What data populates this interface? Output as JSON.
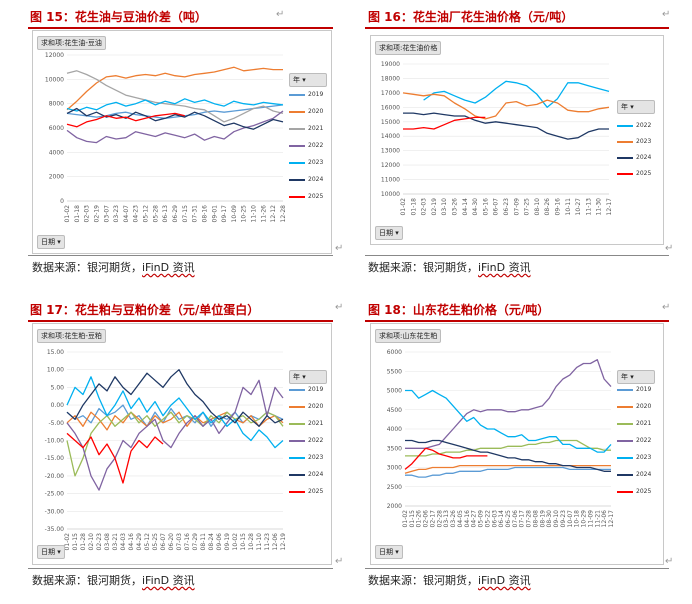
{
  "figures": [
    {
      "title": "图 15：花生油与豆油价差（吨）",
      "source_prefix": "数据来源：银河期货，",
      "source_ifind": "iFinD 资讯",
      "header_pill": "求和项:花生油-豆油",
      "legend_header": "年",
      "x_field": "日期",
      "return_mark": "↵"
    },
    {
      "title": "图 16：花生油厂花生油价格（元/吨）",
      "source_prefix": "数据来源：银河期货，",
      "source_ifind": "iFinD 资讯",
      "header_pill": "求和项:花生油价格",
      "legend_header": "年",
      "x_field": "日期",
      "return_mark": "↵"
    },
    {
      "title": "图 17：花生粕与豆粕价差（元/单位蛋白）",
      "source_prefix": "数据来源：银河期货，",
      "source_ifind": "iFinD 资讯",
      "header_pill": "求和项:花生粕-豆粕",
      "legend_header": "年",
      "x_field": "日期",
      "return_mark": "↵"
    },
    {
      "title": "图 18：山东花生粕价格（元/吨）",
      "source_prefix": "数据来源：银河期货，",
      "source_ifind": "iFinD 资讯",
      "header_pill": "求和项:山东花生粕",
      "legend_header": "年",
      "x_field": "日期",
      "return_mark": "↵"
    }
  ],
  "chart_data": [
    {
      "type": "line",
      "title": "图 15：花生油与豆油价差（吨）",
      "ylim": [
        0,
        12000
      ],
      "yticks": [
        0,
        2000,
        4000,
        6000,
        8000,
        10000,
        12000
      ],
      "x_ticks": [
        "01-02",
        "01-18",
        "02-03",
        "02-19",
        "03-07",
        "03-23",
        "04-07",
        "04-23",
        "05-12",
        "05-28",
        "06-13",
        "06-29",
        "07-15",
        "07-31",
        "08-16",
        "09-01",
        "09-17",
        "10-09",
        "10-25",
        "11-10",
        "11-26",
        "12-12",
        "12-28"
      ],
      "legend_position": "right",
      "series": [
        {
          "name": "2019",
          "color": "#5b9bd5",
          "values": [
            7200,
            7100,
            7000,
            6900,
            7000,
            7200,
            7300,
            7100,
            7000,
            6900,
            6800,
            6900,
            7000,
            7100,
            7300,
            7400,
            7300,
            7400,
            7500,
            7600,
            7700,
            7800,
            7900
          ]
        },
        {
          "name": "2020",
          "color": "#ed7d31",
          "values": [
            7500,
            8200,
            9000,
            9700,
            10200,
            10300,
            10100,
            10300,
            10400,
            10300,
            10500,
            10300,
            10200,
            10400,
            10500,
            10600,
            10800,
            11000,
            10700,
            10800,
            10900,
            10800,
            10800
          ]
        },
        {
          "name": "2021",
          "color": "#a5a5a5",
          "values": [
            10500,
            10700,
            10400,
            10000,
            9500,
            9100,
            8700,
            8500,
            8300,
            8100,
            8000,
            7900,
            7800,
            7600,
            7500,
            7000,
            6500,
            6800,
            7200,
            7600,
            7800,
            7400,
            7200
          ]
        },
        {
          "name": "2022",
          "color": "#8064a2",
          "values": [
            5800,
            5200,
            4900,
            4800,
            5300,
            5100,
            5200,
            5700,
            5500,
            5300,
            5600,
            5400,
            5200,
            5500,
            5000,
            5300,
            5100,
            5700,
            6000,
            6200,
            6500,
            6800,
            7400
          ]
        },
        {
          "name": "2023",
          "color": "#00b0f0",
          "values": [
            7600,
            7400,
            7700,
            7500,
            7900,
            8100,
            7800,
            8000,
            8300,
            7900,
            8200,
            8000,
            8400,
            8100,
            8300,
            8000,
            7800,
            8200,
            8000,
            7900,
            8100,
            8000,
            7900
          ]
        },
        {
          "name": "2024",
          "color": "#1f3864",
          "values": [
            7200,
            7600,
            7000,
            7300,
            6900,
            7100,
            6800,
            7300,
            7000,
            6600,
            6800,
            7100,
            6900,
            7300,
            7000,
            6600,
            6200,
            6400,
            6100,
            5900,
            6300,
            6700,
            6500
          ]
        },
        {
          "name": "2025",
          "color": "#ff0000",
          "values": [
            6300,
            6100,
            6500,
            6700,
            7000,
            6800,
            6900,
            6600,
            6800,
            7000,
            7100,
            7200,
            7000,
            null,
            null,
            null,
            null,
            null,
            null,
            null,
            null,
            null,
            null
          ]
        }
      ]
    },
    {
      "type": "line",
      "title": "图 16：花生油厂花生油价格（元/吨）",
      "ylim": [
        10000,
        19000
      ],
      "yticks": [
        10000,
        11000,
        12000,
        13000,
        14000,
        15000,
        16000,
        17000,
        18000,
        19000
      ],
      "x_ticks": [
        "01-02",
        "01-18",
        "02-03",
        "02-19",
        "03-10",
        "03-26",
        "04-14",
        "04-30",
        "05-16",
        "06-07",
        "06-23",
        "07-09",
        "07-25",
        "08-10",
        "08-26",
        "09-16",
        "10-11",
        "10-27",
        "11-13",
        "11-30",
        "12-17"
      ],
      "legend_position": "right",
      "series": [
        {
          "name": "2022",
          "color": "#00b0f0",
          "values": [
            null,
            null,
            16500,
            17000,
            17100,
            16800,
            16500,
            16300,
            16700,
            17300,
            17800,
            17700,
            17500,
            16900,
            16000,
            16600,
            17700,
            17700,
            17500,
            17300,
            17100
          ]
        },
        {
          "name": "2023",
          "color": "#ed7d31",
          "values": [
            17000,
            16900,
            16800,
            16900,
            16800,
            16300,
            15900,
            15400,
            15200,
            15400,
            16300,
            16400,
            16100,
            16200,
            16500,
            16300,
            15800,
            15700,
            15700,
            15900,
            16000
          ]
        },
        {
          "name": "2024",
          "color": "#1f3864",
          "values": [
            15600,
            15600,
            15500,
            15600,
            15500,
            15400,
            15400,
            15100,
            14900,
            15000,
            14900,
            14800,
            14700,
            14600,
            14200,
            14000,
            13800,
            13900,
            14300,
            14500,
            14500
          ]
        },
        {
          "name": "2025",
          "color": "#ff0000",
          "values": [
            14500,
            14500,
            14600,
            14500,
            14800,
            15100,
            15200,
            15300,
            15300,
            null,
            null,
            null,
            null,
            null,
            null,
            null,
            null,
            null,
            null,
            null,
            null
          ]
        }
      ]
    },
    {
      "type": "line",
      "title": "图 17：花生粕与豆粕价差（元/单位蛋白）",
      "ylim": [
        -35,
        15
      ],
      "yticks": [
        -35,
        -30,
        -25,
        -20,
        -15,
        -10,
        -5,
        0,
        5,
        10,
        15
      ],
      "x_ticks": [
        "01-02",
        "01-15",
        "01-28",
        "02-10",
        "02-23",
        "03-08",
        "03-21",
        "04-03",
        "04-16",
        "04-29",
        "05-12",
        "05-25",
        "06-07",
        "06-20",
        "07-03",
        "07-16",
        "07-29",
        "08-11",
        "08-24",
        "09-06",
        "09-19",
        "10-02",
        "10-15",
        "10-28",
        "11-10",
        "11-23",
        "12-06",
        "12-19"
      ],
      "legend_position": "right",
      "series": [
        {
          "name": "2019",
          "color": "#5b9bd5",
          "values": [
            -2,
            -4,
            -3,
            -5,
            -1,
            -3,
            -2,
            0,
            -4,
            -3,
            -6,
            -2,
            -5,
            -1,
            -4,
            -3,
            -5,
            -2,
            -6,
            -3,
            -4,
            -2,
            -5,
            -3,
            -4,
            -2,
            -3,
            -4
          ]
        },
        {
          "name": "2020",
          "color": "#ed7d31",
          "values": [
            -5,
            -3,
            -6,
            -2,
            -4,
            -7,
            -3,
            -5,
            -2,
            -4,
            -6,
            -3,
            -5,
            -4,
            -2,
            -6,
            -3,
            -5,
            -4,
            -3,
            -2,
            -4,
            -5,
            -3,
            -6,
            -4,
            -3,
            -5
          ]
        },
        {
          "name": "2021",
          "color": "#9bbb59",
          "values": [
            -10,
            -20,
            -15,
            -8,
            -5,
            -3,
            -6,
            -4,
            -2,
            -5,
            -3,
            -6,
            -4,
            -2,
            -5,
            -3,
            -4,
            -6,
            -3,
            -5,
            -2,
            -4,
            -3,
            -5,
            -4,
            -2,
            -3,
            -6
          ]
        },
        {
          "name": "2022",
          "color": "#8064a2",
          "values": [
            -5,
            -8,
            -12,
            -20,
            -24,
            -18,
            -15,
            -10,
            -12,
            -8,
            -6,
            -4,
            -10,
            -12,
            -8,
            -5,
            -3,
            -6,
            -4,
            -8,
            -5,
            -2,
            5,
            3,
            7,
            -3,
            5,
            2
          ]
        },
        {
          "name": "2023",
          "color": "#00b0f0",
          "values": [
            0,
            5,
            3,
            8,
            2,
            -3,
            0,
            4,
            -1,
            2,
            -2,
            1,
            -3,
            0,
            2,
            -1,
            -4,
            -2,
            -5,
            -3,
            -6,
            -4,
            -8,
            -10,
            -7,
            -9,
            -12,
            -10
          ]
        },
        {
          "name": "2024",
          "color": "#1f3864",
          "values": [
            -2,
            -4,
            0,
            3,
            6,
            4,
            8,
            5,
            3,
            6,
            9,
            7,
            5,
            8,
            10,
            6,
            3,
            1,
            -2,
            -4,
            -3,
            -5,
            -2,
            -4,
            -6,
            -3,
            -5,
            -4
          ]
        },
        {
          "name": "2025",
          "color": "#ff0000",
          "values": [
            -8,
            -10,
            -12,
            -9,
            -14,
            -11,
            -15,
            -22,
            -13,
            -10,
            -12,
            -9,
            -11,
            null,
            null,
            null,
            null,
            null,
            null,
            null,
            null,
            null,
            null,
            null,
            null,
            null,
            null,
            null
          ]
        }
      ]
    },
    {
      "type": "line",
      "title": "图 18：山东花生粕价格（元/吨）",
      "ylim": [
        2000,
        6000
      ],
      "yticks": [
        2000,
        2500,
        3000,
        3500,
        4000,
        4500,
        5000,
        5500,
        6000
      ],
      "x_ticks": [
        "01-02",
        "01-15",
        "01-26",
        "02-06",
        "02-17",
        "02-28",
        "03-13",
        "03-26",
        "04-05",
        "04-16",
        "04-27",
        "05-09",
        "05-22",
        "06-03",
        "06-14",
        "06-25",
        "07-06",
        "07-17",
        "07-28",
        "08-08",
        "08-19",
        "08-30",
        "09-10",
        "09-23",
        "10-07",
        "10-18",
        "10-29",
        "11-09",
        "11-21",
        "12-06",
        "12-17"
      ],
      "legend_position": "right",
      "series": [
        {
          "name": "2019",
          "color": "#5b9bd5",
          "values": [
            2800,
            2800,
            2750,
            2750,
            2800,
            2800,
            2850,
            2850,
            2900,
            2900,
            2900,
            2900,
            2950,
            2950,
            2950,
            2950,
            3000,
            3000,
            3000,
            3000,
            3000,
            3000,
            3000,
            3000,
            2950,
            2950,
            2950,
            2950,
            2950,
            2950,
            2950
          ]
        },
        {
          "name": "2020",
          "color": "#ed7d31",
          "values": [
            2850,
            2900,
            2950,
            2950,
            3000,
            3000,
            3000,
            3000,
            3050,
            3050,
            3050,
            3050,
            3050,
            3050,
            3050,
            3050,
            3050,
            3050,
            3050,
            3050,
            3050,
            3050,
            3050,
            3050,
            3050,
            3050,
            3050,
            3050,
            3050,
            3050,
            3050
          ]
        },
        {
          "name": "2021",
          "color": "#9bbb59",
          "values": [
            3300,
            3300,
            3300,
            3300,
            3350,
            3350,
            3400,
            3400,
            3400,
            3450,
            3450,
            3500,
            3500,
            3500,
            3500,
            3550,
            3550,
            3550,
            3600,
            3600,
            3650,
            3650,
            3700,
            3700,
            3700,
            3700,
            3600,
            3500,
            3500,
            3450,
            3450
          ]
        },
        {
          "name": "2022",
          "color": "#8064a2",
          "values": [
            3500,
            3500,
            3500,
            3500,
            3550,
            3600,
            3800,
            4000,
            4200,
            4400,
            4500,
            4450,
            4500,
            4500,
            4500,
            4450,
            4450,
            4500,
            4500,
            4550,
            4600,
            4800,
            5100,
            5300,
            5400,
            5600,
            5700,
            5700,
            5800,
            5300,
            5100
          ]
        },
        {
          "name": "2023",
          "color": "#00b0f0",
          "values": [
            5000,
            5000,
            4800,
            4900,
            5000,
            4900,
            4800,
            4600,
            4400,
            4200,
            4300,
            4100,
            4000,
            4000,
            3900,
            3800,
            3800,
            3850,
            3700,
            3700,
            3750,
            3800,
            3800,
            3600,
            3600,
            3500,
            3500,
            3500,
            3400,
            3400,
            3600
          ]
        },
        {
          "name": "2024",
          "color": "#1f3864",
          "values": [
            3700,
            3700,
            3650,
            3650,
            3700,
            3700,
            3650,
            3600,
            3550,
            3500,
            3450,
            3400,
            3400,
            3350,
            3300,
            3250,
            3250,
            3200,
            3200,
            3150,
            3150,
            3100,
            3100,
            3050,
            3050,
            3000,
            3000,
            3000,
            2950,
            2900,
            2900
          ]
        },
        {
          "name": "2025",
          "color": "#ff0000",
          "values": [
            2950,
            3100,
            3300,
            3500,
            3450,
            3350,
            3300,
            3250,
            3250,
            3300,
            3300,
            3300,
            3300,
            null,
            null,
            null,
            null,
            null,
            null,
            null,
            null,
            null,
            null,
            null,
            null,
            null,
            null,
            null,
            null,
            null,
            null
          ]
        }
      ]
    }
  ]
}
